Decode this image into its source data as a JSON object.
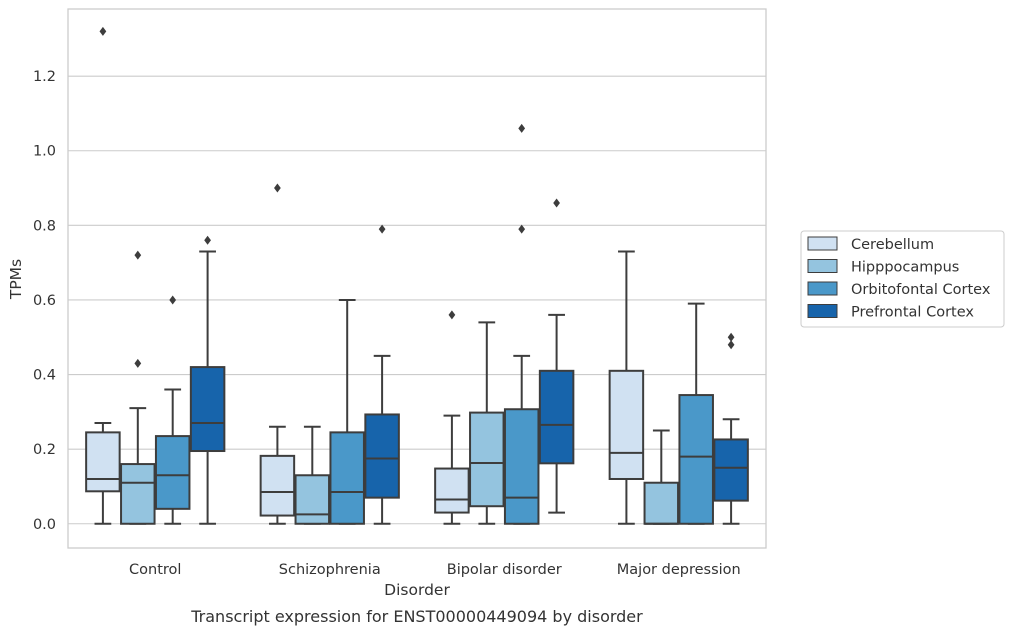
{
  "chart_data": {
    "type": "box",
    "title": "",
    "caption": "Transcript expression for ENST00000449094 by disorder",
    "xlabel": "Disorder",
    "ylabel": "TPMs",
    "ylim": [
      -0.065,
      1.38
    ],
    "yticks": [
      0.0,
      0.2,
      0.4,
      0.6,
      0.8,
      1.0,
      1.2
    ],
    "ytick_labels": [
      "0.0",
      "0.2",
      "0.4",
      "0.6",
      "0.8",
      "1.0",
      "1.2"
    ],
    "grid": "horizontal",
    "legend_position": "right",
    "categories": [
      "Control",
      "Schizophrenia",
      "Bipolar disorder",
      "Major depression"
    ],
    "series": [
      {
        "name": "Cerebellum",
        "color": "#d0e1f2",
        "boxes": [
          {
            "whisker_low": 0.0,
            "q1": 0.087,
            "median": 0.12,
            "q3": 0.245,
            "whisker_high": 0.27,
            "outliers": [
              1.32
            ]
          },
          {
            "whisker_low": 0.0,
            "q1": 0.022,
            "median": 0.085,
            "q3": 0.182,
            "whisker_high": 0.26,
            "outliers": [
              0.9
            ]
          },
          {
            "whisker_low": 0.0,
            "q1": 0.03,
            "median": 0.065,
            "q3": 0.148,
            "whisker_high": 0.29,
            "outliers": [
              0.56
            ]
          },
          {
            "whisker_low": 0.0,
            "q1": 0.12,
            "median": 0.19,
            "q3": 0.41,
            "whisker_high": 0.73,
            "outliers": []
          }
        ]
      },
      {
        "name": "Hipppocampus",
        "color": "#94c4df",
        "boxes": [
          {
            "whisker_low": 0.0,
            "q1": 0.0,
            "median": 0.11,
            "q3": 0.16,
            "whisker_high": 0.31,
            "outliers": [
              0.72,
              0.43
            ]
          },
          {
            "whisker_low": 0.0,
            "q1": 0.0,
            "median": 0.025,
            "q3": 0.13,
            "whisker_high": 0.26,
            "outliers": []
          },
          {
            "whisker_low": 0.0,
            "q1": 0.047,
            "median": 0.163,
            "q3": 0.298,
            "whisker_high": 0.54,
            "outliers": []
          },
          {
            "whisker_low": 0.0,
            "q1": 0.0,
            "median": 0.0,
            "q3": 0.11,
            "whisker_high": 0.25,
            "outliers": []
          }
        ]
      },
      {
        "name": "Orbitofontal Cortex",
        "color": "#4a98c9",
        "boxes": [
          {
            "whisker_low": 0.0,
            "q1": 0.04,
            "median": 0.13,
            "q3": 0.235,
            "whisker_high": 0.36,
            "outliers": [
              0.6
            ]
          },
          {
            "whisker_low": 0.0,
            "q1": 0.0,
            "median": 0.085,
            "q3": 0.245,
            "whisker_high": 0.6,
            "outliers": []
          },
          {
            "whisker_low": 0.0,
            "q1": 0.0,
            "median": 0.07,
            "q3": 0.307,
            "whisker_high": 0.45,
            "outliers": [
              1.06,
              0.79
            ]
          },
          {
            "whisker_low": 0.0,
            "q1": 0.0,
            "median": 0.18,
            "q3": 0.345,
            "whisker_high": 0.59,
            "outliers": []
          }
        ]
      },
      {
        "name": "Prefrontal Cortex",
        "color": "#1764ab",
        "boxes": [
          {
            "whisker_low": 0.0,
            "q1": 0.195,
            "median": 0.27,
            "q3": 0.42,
            "whisker_high": 0.73,
            "outliers": [
              0.76
            ]
          },
          {
            "whisker_low": 0.0,
            "q1": 0.07,
            "median": 0.175,
            "q3": 0.293,
            "whisker_high": 0.45,
            "outliers": [
              0.79
            ]
          },
          {
            "whisker_low": 0.03,
            "q1": 0.162,
            "median": 0.265,
            "q3": 0.41,
            "whisker_high": 0.56,
            "outliers": [
              0.86
            ]
          },
          {
            "whisker_low": 0.0,
            "q1": 0.062,
            "median": 0.15,
            "q3": 0.226,
            "whisker_high": 0.28,
            "outliers": [
              0.5,
              0.48
            ]
          }
        ]
      }
    ]
  }
}
